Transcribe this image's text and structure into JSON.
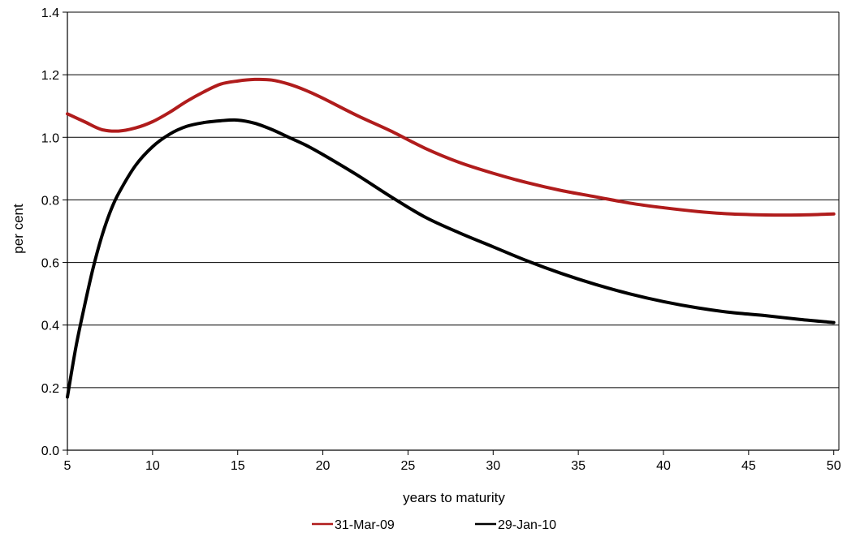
{
  "chart_data": {
    "type": "line",
    "title": "",
    "xlabel": "years to maturity",
    "ylabel": "per cent",
    "xlim": [
      5,
      50.3
    ],
    "ylim": [
      0,
      1.4
    ],
    "x_ticks": [
      5,
      10,
      15,
      20,
      25,
      30,
      35,
      40,
      45,
      50
    ],
    "y_ticks": [
      0.0,
      0.2,
      0.4,
      0.6,
      0.8,
      1.0,
      1.2,
      1.4
    ],
    "x_tick_labels": [
      "5",
      "10",
      "15",
      "20",
      "25",
      "30",
      "35",
      "40",
      "45",
      "50"
    ],
    "y_tick_labels": [
      "0.0",
      "0.2",
      "0.4",
      "0.6",
      "0.8",
      "1.0",
      "1.2",
      "1.4"
    ],
    "grid": "horizontal",
    "legend_position": "bottom",
    "series": [
      {
        "name": "31-Mar-09",
        "color": "#b01c1c",
        "x": [
          5,
          6,
          7,
          8,
          9,
          10,
          11,
          12,
          13,
          14,
          15,
          16,
          17,
          18,
          19,
          20,
          22,
          24,
          26,
          28,
          30,
          32,
          34,
          36,
          38,
          40,
          42,
          44,
          46,
          48,
          50
        ],
        "y": [
          1.075,
          1.05,
          1.025,
          1.02,
          1.03,
          1.05,
          1.08,
          1.115,
          1.145,
          1.17,
          1.18,
          1.185,
          1.183,
          1.17,
          1.15,
          1.125,
          1.07,
          1.02,
          0.965,
          0.92,
          0.885,
          0.855,
          0.83,
          0.81,
          0.79,
          0.775,
          0.763,
          0.755,
          0.752,
          0.752,
          0.755
        ]
      },
      {
        "name": "29-Jan-10",
        "color": "#000000",
        "x": [
          5,
          5.5,
          6,
          6.5,
          7,
          7.5,
          8,
          9,
          10,
          11,
          12,
          13,
          14,
          15,
          16,
          17,
          18,
          19,
          20,
          22,
          24,
          26,
          28,
          30,
          32,
          34,
          36,
          38,
          40,
          42,
          44,
          46,
          48,
          50
        ],
        "y": [
          0.17,
          0.33,
          0.46,
          0.58,
          0.68,
          0.76,
          0.82,
          0.91,
          0.97,
          1.01,
          1.035,
          1.047,
          1.053,
          1.055,
          1.045,
          1.025,
          1.0,
          0.975,
          0.945,
          0.88,
          0.81,
          0.745,
          0.695,
          0.65,
          0.605,
          0.565,
          0.53,
          0.5,
          0.475,
          0.455,
          0.44,
          0.43,
          0.418,
          0.408
        ]
      }
    ]
  }
}
